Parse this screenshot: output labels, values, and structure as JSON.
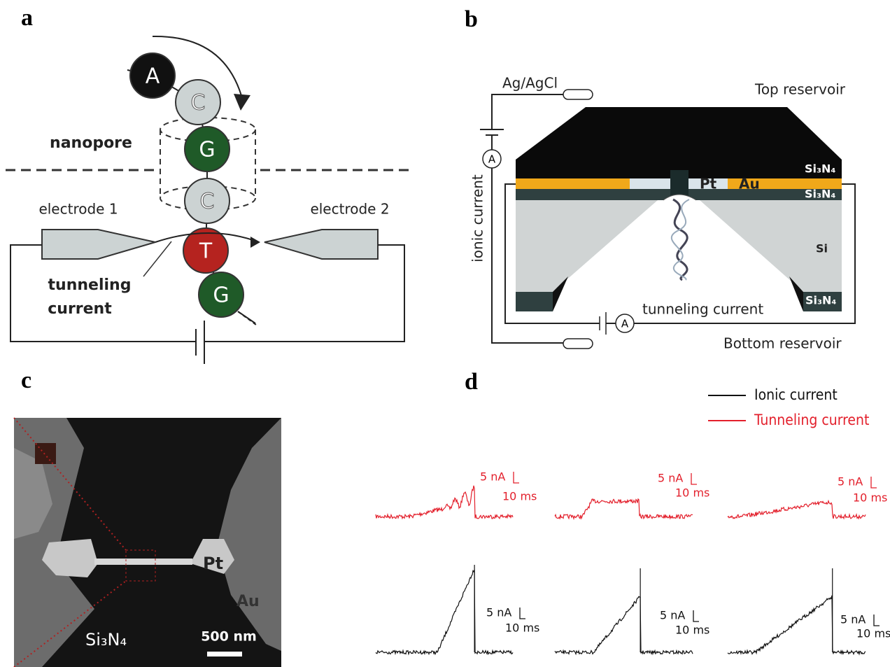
{
  "panels": {
    "a": {
      "label": "a",
      "nucleotides": [
        "A",
        "C",
        "G",
        "C",
        "T",
        "G"
      ],
      "nanopore": "nanopore",
      "electrode_1": "electrode 1",
      "electrode_2": "electrode 2",
      "tunneling_current": [
        "tunneling",
        "current"
      ]
    },
    "b": {
      "label": "b",
      "ag_agcl": "Ag/AgCl",
      "top_reservoir": "Top reservoir",
      "bottom_reservoir": "Bottom reservoir",
      "layers": [
        "Si₃N₄",
        "Si₃N₄",
        "Si",
        "Si₃N₄"
      ],
      "pt": "Pt",
      "au": "Au",
      "ionic_current": "ionic current",
      "tunneling_current": "tunneling current",
      "ammeter": "A"
    },
    "c": {
      "label": "c",
      "pt": "Pt",
      "au": "Au",
      "substrate": "Si₃N₄",
      "scale_bar": "500 nm"
    },
    "d": {
      "label": "d",
      "legend": [
        {
          "name": "Ionic current",
          "color": "#111111"
        },
        {
          "name": "Tunneling current",
          "color": "#e3202c"
        }
      ],
      "scale_current": "5 nA",
      "scale_time": "10 ms"
    }
  }
}
